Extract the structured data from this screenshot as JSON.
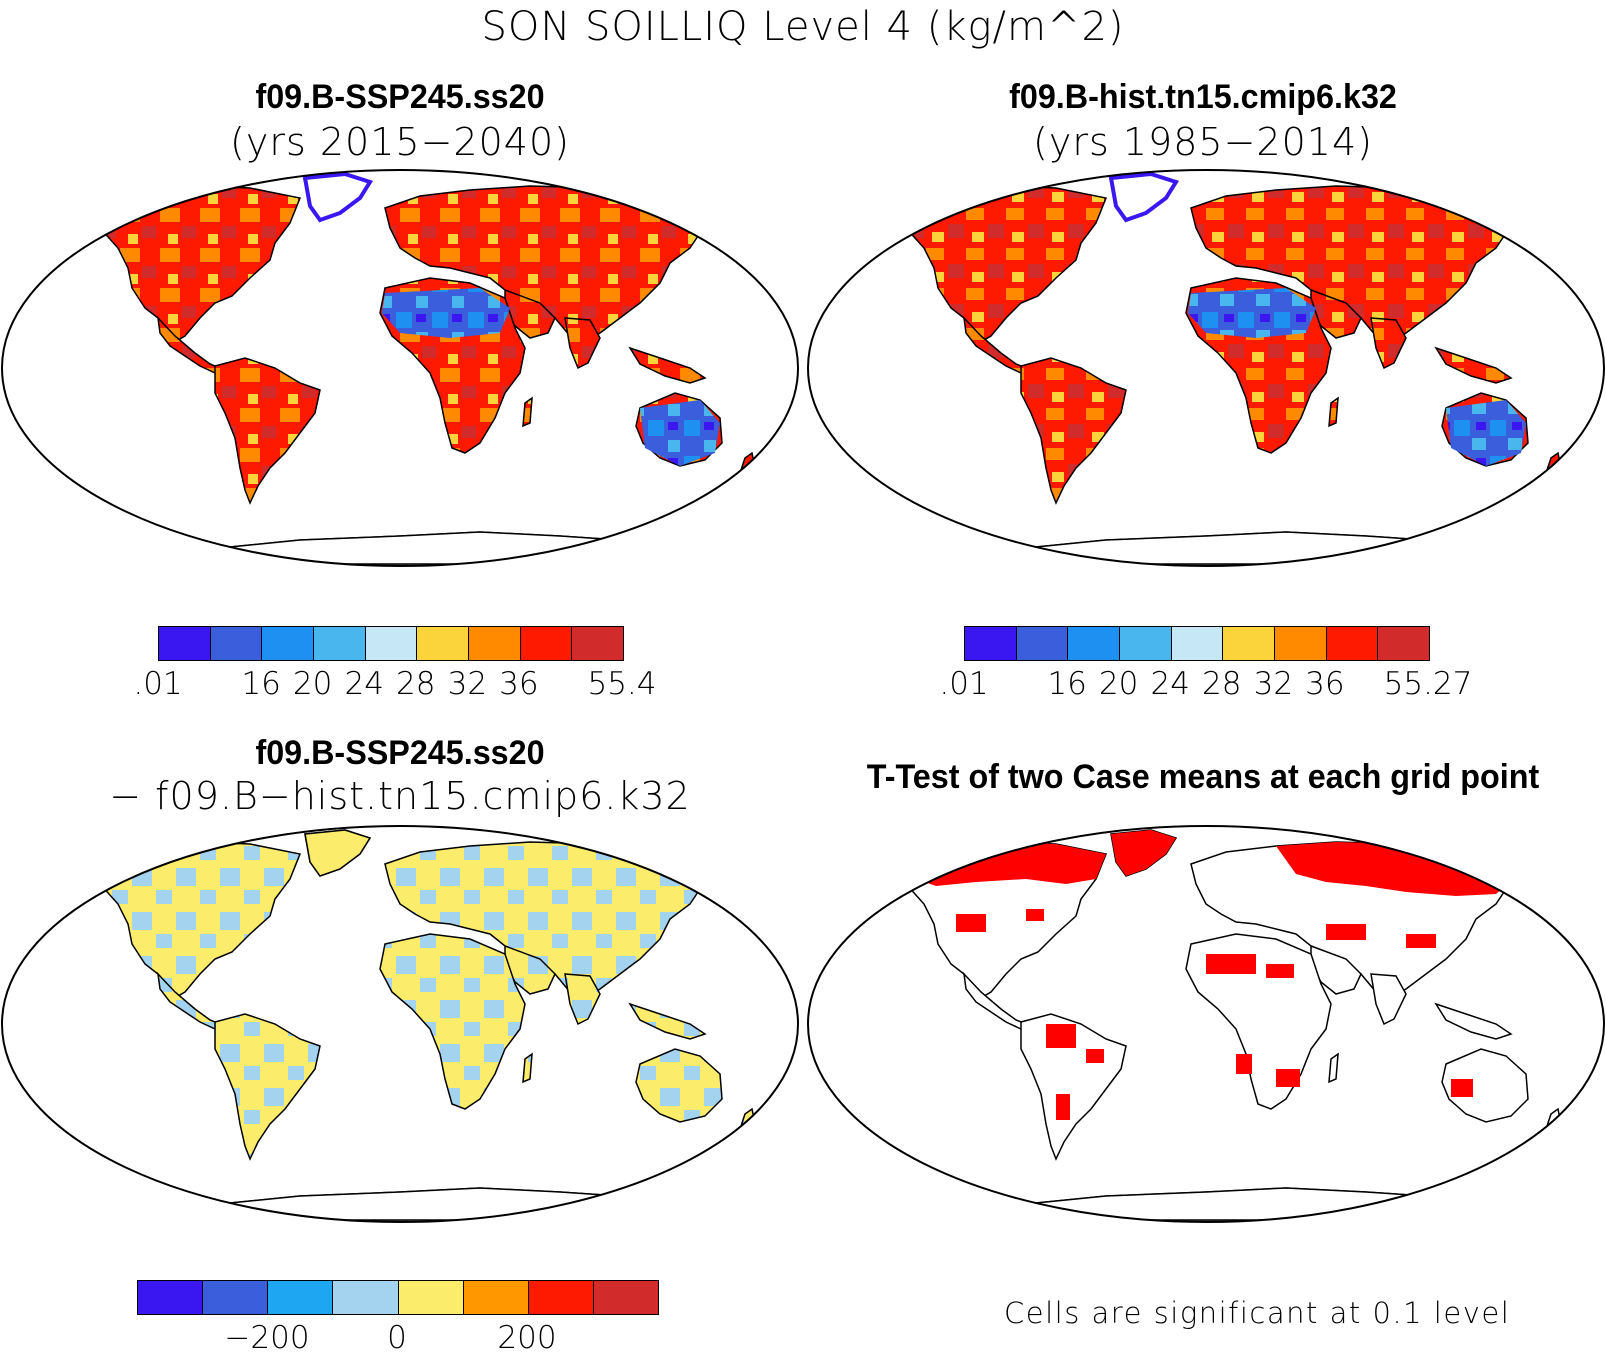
{
  "figure": {
    "title": "SON SOILLIQ Level 4 (kg/m^2)"
  },
  "panels": {
    "ssp": {
      "title": "f09.B-SSP245.ss20",
      "subtitle": "(yrs 2015−2040)",
      "colorbar": {
        "colors": [
          "#3a17f0",
          "#3a5edc",
          "#1e90f2",
          "#4ab6ee",
          "#c6e8f6",
          "#fbd33b",
          "#ff8a00",
          "#fe1a00",
          "#d22b2b"
        ],
        "labels": [
          ".01",
          "16",
          "20",
          "24",
          "28",
          "32",
          "36",
          "55.4"
        ]
      }
    },
    "hist": {
      "title": "f09.B-hist.tn15.cmip6.k32",
      "subtitle": "(yrs 1985−2014)",
      "colorbar": {
        "colors": [
          "#3a17f0",
          "#3a5edc",
          "#1e90f2",
          "#4ab6ee",
          "#c6e8f6",
          "#fbd33b",
          "#ff8a00",
          "#fe1a00",
          "#d22b2b"
        ],
        "labels": [
          ".01",
          "16",
          "20",
          "24",
          "28",
          "32",
          "36",
          "55.27"
        ]
      }
    },
    "diff": {
      "title": "f09.B-SSP245.ss20",
      "subtitle": "− f09.B−hist.tn15.cmip6.k32",
      "colorbar": {
        "colors": [
          "#3a17f0",
          "#3a5edc",
          "#1ea6f2",
          "#a3d3ef",
          "#fbec6b",
          "#ff9800",
          "#fe1a00",
          "#d22b2b"
        ],
        "labels": [
          "−200",
          "0",
          "200"
        ]
      }
    },
    "ttest": {
      "title": "T-Test of two Case means at each grid point",
      "note": "Cells are significant at 0.1 level",
      "significant_color": "#fe0000"
    }
  }
}
